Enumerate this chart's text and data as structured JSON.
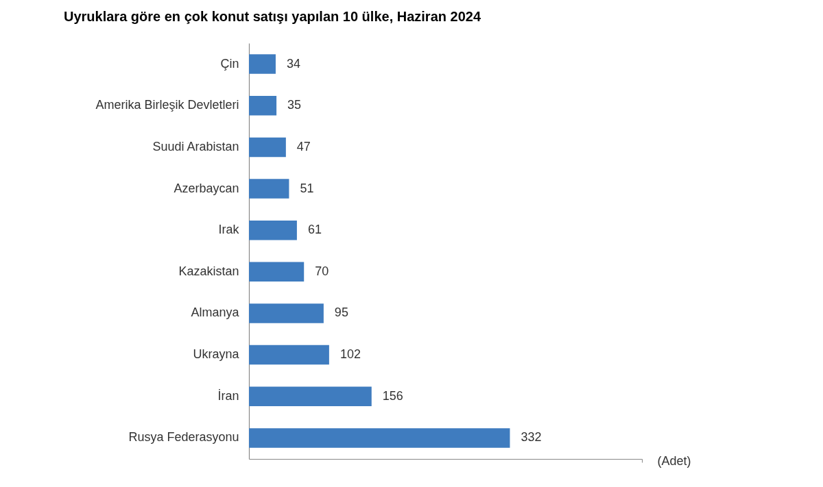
{
  "chart_data": {
    "type": "bar",
    "orientation": "horizontal",
    "title": "Uyruklara göre en çok konut satışı yapılan 10 ülke, Haziran 2024",
    "xlabel": "(Adet)",
    "categories": [
      "Çin",
      "Amerika Birleşik Devletleri",
      "Suudi Arabistan",
      "Azerbaycan",
      "Irak",
      "Kazakistan",
      "Almanya",
      "Ukrayna",
      "İran",
      "Rusya Federasyonu"
    ],
    "values": [
      34,
      35,
      47,
      51,
      61,
      70,
      95,
      102,
      156,
      332
    ],
    "color": "#3f7cbf",
    "xlim": [
      0,
      500
    ],
    "xticks": [
      {
        "value": 500,
        "label": null
      }
    ],
    "data_labels": true,
    "tick_labels": "y"
  }
}
